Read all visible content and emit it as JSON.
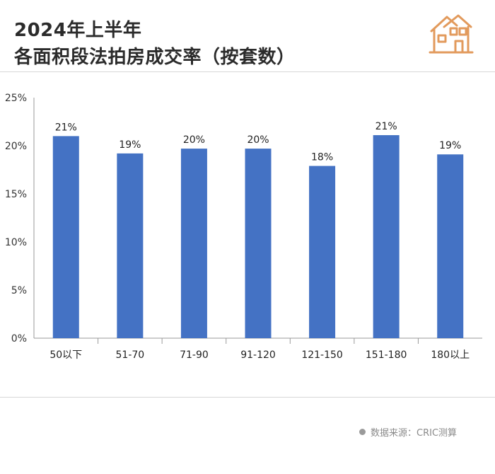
{
  "header": {
    "title_line1": "2024年上半年",
    "title_line2": "各面积段法拍房成交率（按套数）",
    "logo_icon": "house-icon"
  },
  "source": {
    "text": "数据来源：CRIC测算"
  },
  "colors": {
    "bar": "#4472c4",
    "logo": "#e29a5c",
    "axis": "#9a9a9a"
  },
  "chart_data": {
    "type": "bar",
    "title": "2024年上半年 各面积段法拍房成交率（按套数）",
    "xlabel": "",
    "ylabel": "",
    "categories": [
      "50以下",
      "51-70",
      "71-90",
      "91-120",
      "121-150",
      "151-180",
      "180以上"
    ],
    "values": [
      21,
      19.2,
      19.7,
      19.7,
      17.9,
      21.1,
      19.1
    ],
    "data_labels": [
      "21%",
      "19%",
      "20%",
      "20%",
      "18%",
      "21%",
      "19%"
    ],
    "ylim": [
      0,
      25
    ],
    "yticks": [
      0,
      5,
      10,
      15,
      20,
      25
    ],
    "ytick_labels": [
      "0%",
      "5%",
      "10%",
      "15%",
      "20%",
      "25%"
    ],
    "grid": false,
    "legend": "none"
  }
}
